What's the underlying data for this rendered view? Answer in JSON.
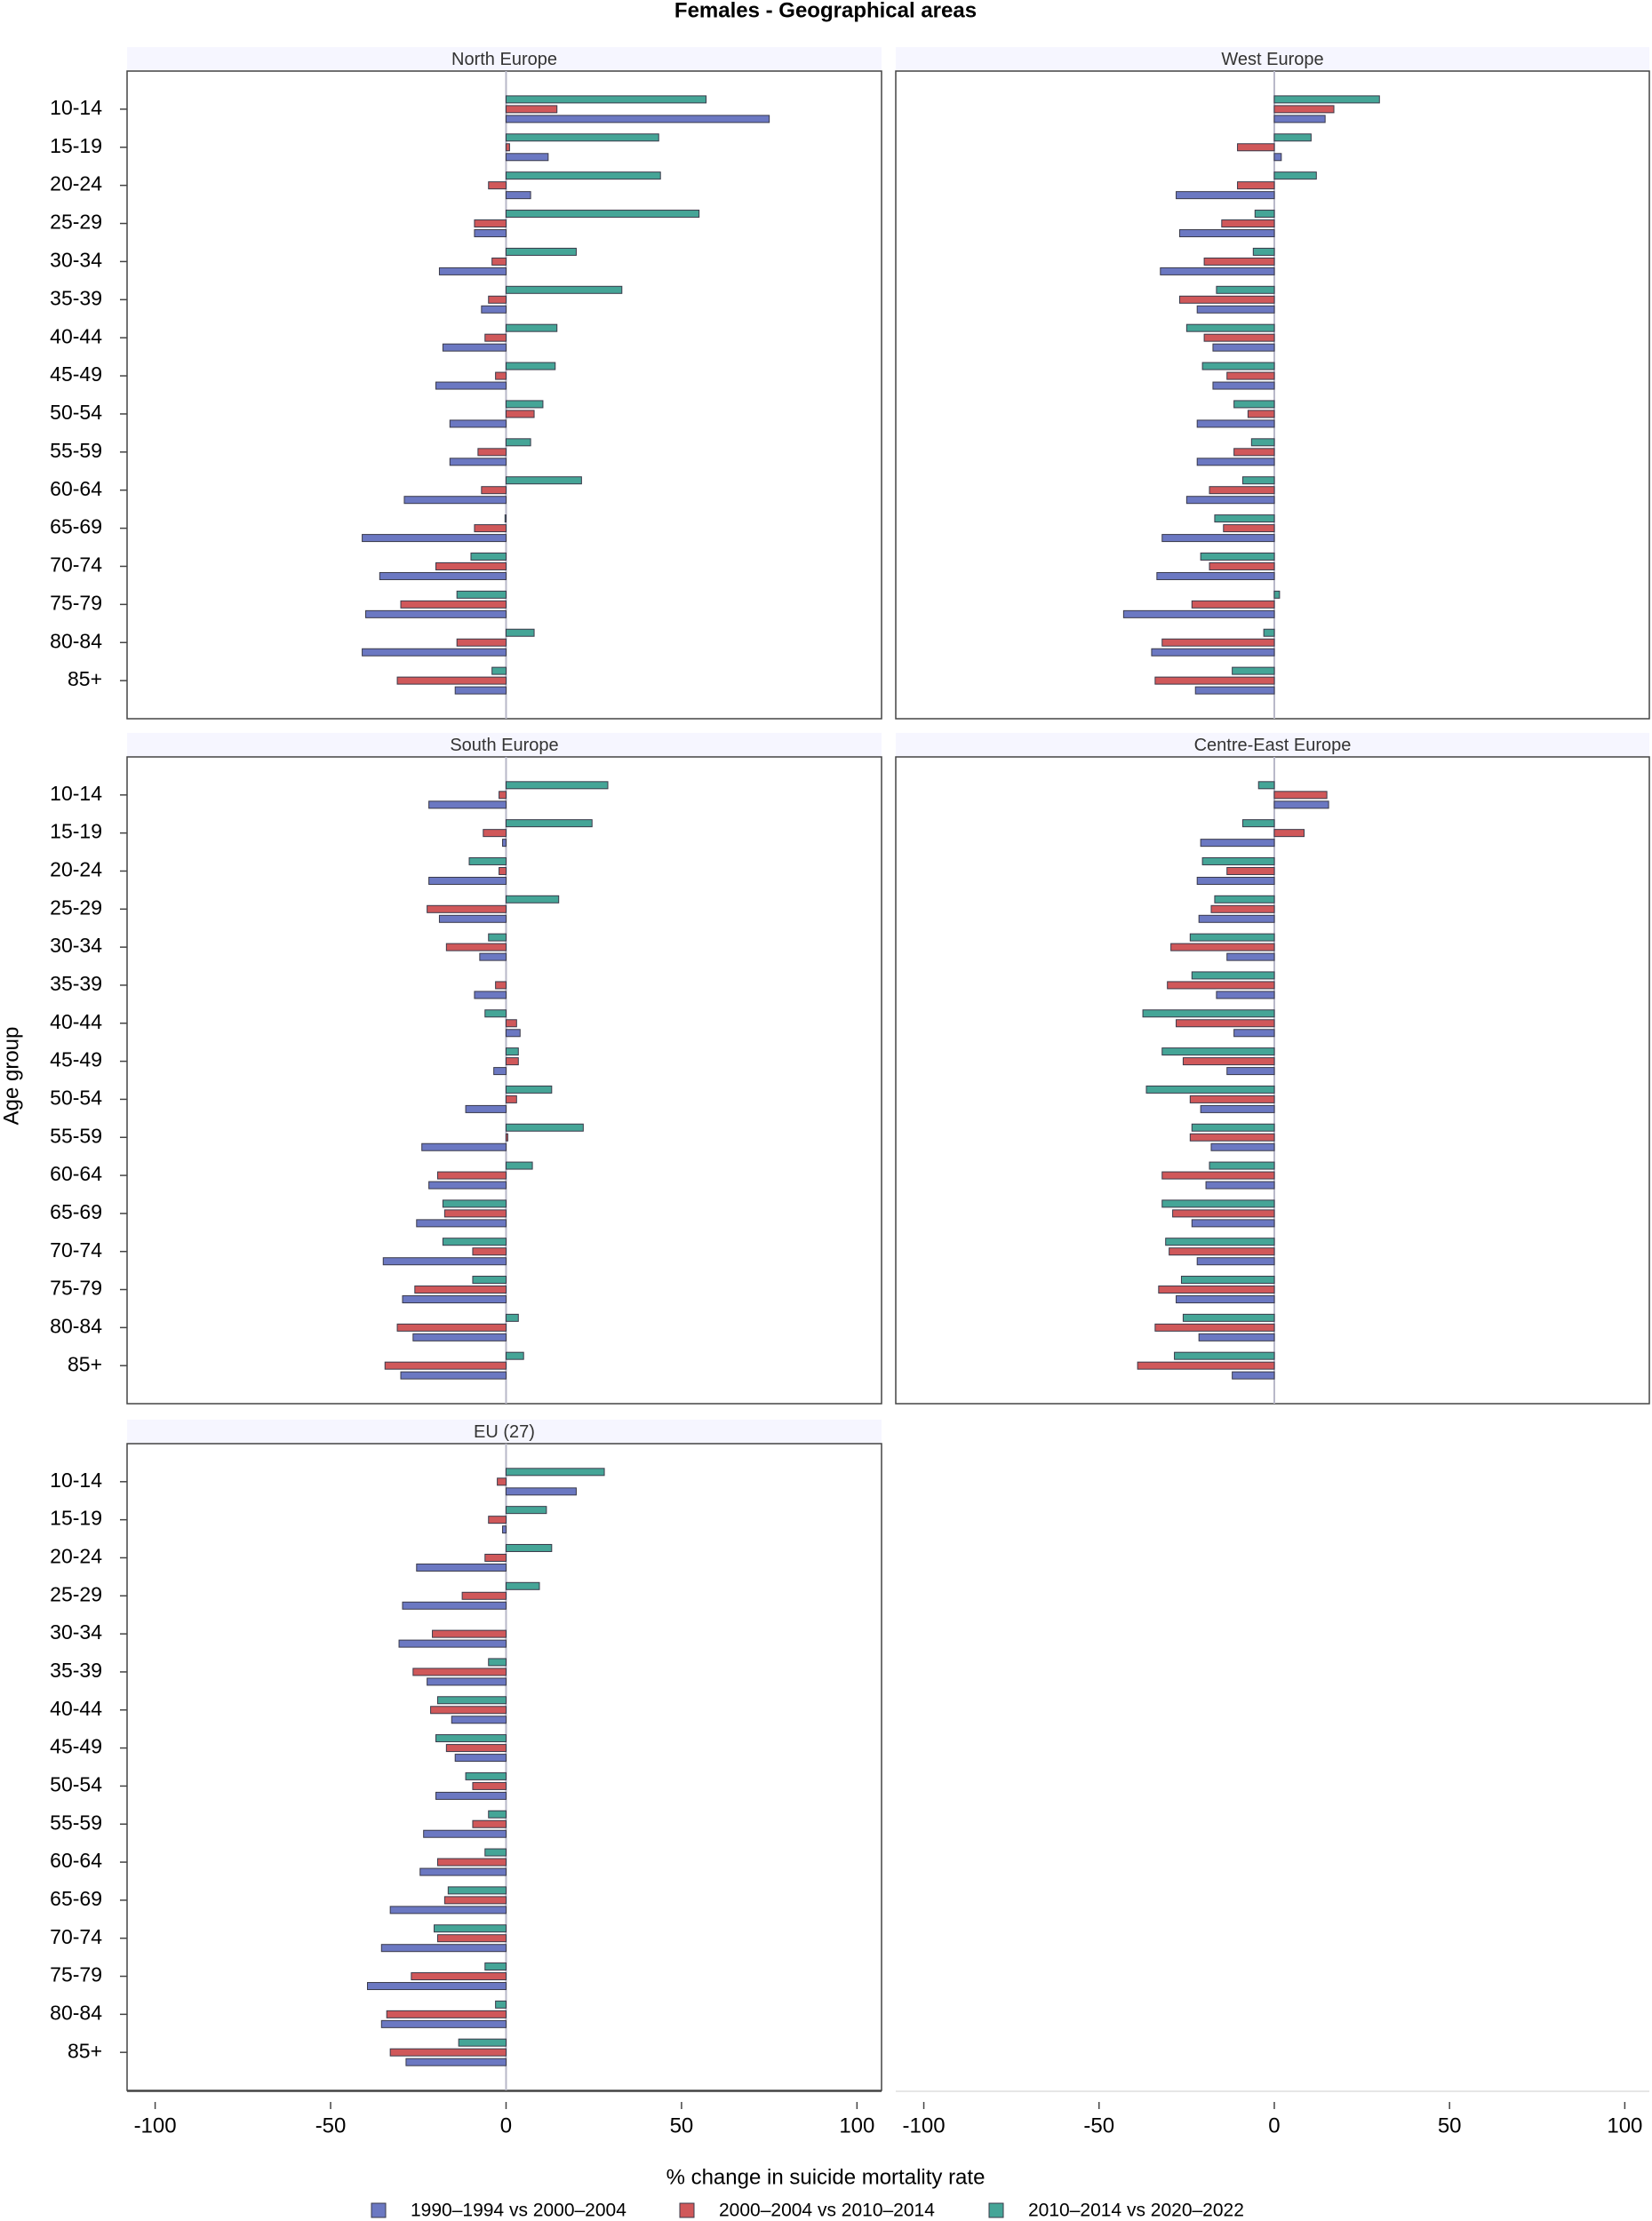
{
  "title": "Females - Geographical areas",
  "x_label": "% change in suicide mortality rate",
  "y_label": "Age group",
  "chart_data": [
    {
      "type": "bar",
      "orientation": "horizontal",
      "title": "North Europe",
      "categories": [
        "10-14",
        "15-19",
        "20-24",
        "25-29",
        "30-34",
        "35-39",
        "40-44",
        "45-49",
        "50-54",
        "55-59",
        "60-64",
        "65-69",
        "70-74",
        "75-79",
        "80-84",
        "85+"
      ],
      "xlim": [
        -108,
        107
      ],
      "xticks": [
        -100,
        -50,
        0,
        50,
        100
      ],
      "series": [
        {
          "name": "1990–1994 vs 2000–2004",
          "color": "#6b78c2",
          "values": [
            75,
            12,
            7,
            -9,
            -19,
            -7,
            -18,
            -20,
            -16,
            -16,
            -29,
            -41,
            -36,
            -40,
            -41,
            -14.5
          ]
        },
        {
          "name": "2000–2004 vs 2010–2014",
          "color": "#d0585a",
          "values": [
            14.5,
            1,
            -5,
            -9,
            -4,
            -5,
            -6,
            -3,
            8,
            -8,
            -7,
            -9,
            -20,
            -30,
            -14,
            -31
          ]
        },
        {
          "name": "2010–2014 vs 2020–2022",
          "color": "#45a597",
          "values": [
            57,
            43.5,
            44,
            55,
            20,
            33,
            14.5,
            14,
            10.5,
            7,
            21.5,
            -0.3,
            -10,
            -14,
            8,
            -4
          ]
        }
      ]
    },
    {
      "type": "bar",
      "orientation": "horizontal",
      "title": "West Europe",
      "categories": [
        "10-14",
        "15-19",
        "20-24",
        "25-29",
        "30-34",
        "35-39",
        "40-44",
        "45-49",
        "50-54",
        "55-59",
        "60-64",
        "65-69",
        "70-74",
        "75-79",
        "80-84",
        "85+"
      ],
      "xlim": [
        -108,
        107
      ],
      "xticks": [
        -100,
        -50,
        0,
        50,
        100
      ],
      "series": [
        {
          "name": "1990–1994 vs 2000–2004",
          "color": "#6b78c2",
          "values": [
            14.5,
            2,
            -28,
            -27,
            -32.5,
            -22,
            -17.5,
            -17.5,
            -22,
            -22,
            -25,
            -32,
            -33.5,
            -43,
            -35,
            -22.5
          ]
        },
        {
          "name": "2000–2004 vs 2010–2014",
          "color": "#d0585a",
          "values": [
            17,
            -10.5,
            -10.5,
            -15,
            -20,
            -27,
            -20,
            -13.5,
            -7.5,
            -11.5,
            -18.5,
            -14.5,
            -18.5,
            -23.5,
            -32,
            -34
          ]
        },
        {
          "name": "2010–2014 vs 2020–2022",
          "color": "#45a597",
          "values": [
            30,
            10.5,
            12,
            -5.5,
            -6,
            -16.5,
            -25,
            -20.5,
            -11.5,
            -6.5,
            -9,
            -17,
            -21,
            1.5,
            -3,
            -12
          ]
        }
      ]
    },
    {
      "type": "bar",
      "orientation": "horizontal",
      "title": "South Europe",
      "categories": [
        "10-14",
        "15-19",
        "20-24",
        "25-29",
        "30-34",
        "35-39",
        "40-44",
        "45-49",
        "50-54",
        "55-59",
        "60-64",
        "65-69",
        "70-74",
        "75-79",
        "80-84",
        "85+"
      ],
      "xlim": [
        -108,
        107
      ],
      "xticks": [
        -100,
        -50,
        0,
        50,
        100
      ],
      "series": [
        {
          "name": "1990–1994 vs 2000–2004",
          "color": "#6b78c2",
          "values": [
            -22,
            -1,
            -22,
            -19,
            -7.5,
            -9,
            4,
            -3.5,
            -11.5,
            -24,
            -22,
            -25.5,
            -35,
            -29.5,
            -26.5,
            -30
          ]
        },
        {
          "name": "2000–2004 vs 2010–2014",
          "color": "#d0585a",
          "values": [
            -2,
            -6.5,
            -2,
            -22.5,
            -17,
            -3,
            3,
            3.5,
            3,
            0.5,
            -19.5,
            -17.5,
            -9.5,
            -26,
            -31,
            -34.5
          ]
        },
        {
          "name": "2010–2014 vs 2020–2022",
          "color": "#45a597",
          "values": [
            29,
            24.5,
            -10.5,
            15,
            -5,
            0,
            -6,
            3.5,
            13,
            22,
            7.5,
            -18,
            -18,
            -9.5,
            3.5,
            5
          ]
        }
      ]
    },
    {
      "type": "bar",
      "orientation": "horizontal",
      "title": "Centre-East Europe",
      "categories": [
        "10-14",
        "15-19",
        "20-24",
        "25-29",
        "30-34",
        "35-39",
        "40-44",
        "45-49",
        "50-54",
        "55-59",
        "60-64",
        "65-69",
        "70-74",
        "75-79",
        "80-84",
        "85+"
      ],
      "xlim": [
        -108,
        107
      ],
      "xticks": [
        -100,
        -50,
        0,
        50,
        100
      ],
      "series": [
        {
          "name": "1990–1994 vs 2000–2004",
          "color": "#6b78c2",
          "values": [
            15.5,
            -21,
            -22,
            -21.5,
            -13.5,
            -16.5,
            -11.5,
            -13.5,
            -21,
            -18,
            -19.5,
            -23.5,
            -22,
            -28,
            -21.5,
            -12
          ]
        },
        {
          "name": "2000–2004 vs 2010–2014",
          "color": "#d0585a",
          "values": [
            15,
            8.5,
            -13.5,
            -18,
            -29.5,
            -30.5,
            -28,
            -26,
            -24,
            -24,
            -32,
            -29,
            -30,
            -33,
            -34,
            -39
          ]
        },
        {
          "name": "2010–2014 vs 2020–2022",
          "color": "#45a597",
          "values": [
            -4.5,
            -9,
            -20.5,
            -17,
            -24,
            -23.5,
            -37.5,
            -32,
            -36.5,
            -23.5,
            -18.5,
            -32,
            -31,
            -26.5,
            -26,
            -28.5
          ]
        }
      ]
    },
    {
      "type": "bar",
      "orientation": "horizontal",
      "title": "EU (27)",
      "categories": [
        "10-14",
        "15-19",
        "20-24",
        "25-29",
        "30-34",
        "35-39",
        "40-44",
        "45-49",
        "50-54",
        "55-59",
        "60-64",
        "65-69",
        "70-74",
        "75-79",
        "80-84",
        "85+"
      ],
      "xlim": [
        -108,
        107
      ],
      "xticks": [
        -100,
        -50,
        0,
        50,
        100
      ],
      "series": [
        {
          "name": "1990–1994 vs 2000–2004",
          "color": "#6b78c2",
          "values": [
            20,
            -1,
            -25.5,
            -29.5,
            -30.5,
            -22.5,
            -15.5,
            -14.5,
            -20,
            -23.5,
            -24.5,
            -33,
            -35.5,
            -39.5,
            -35.5,
            -28.5
          ]
        },
        {
          "name": "2000–2004 vs 2010–2014",
          "color": "#d0585a",
          "values": [
            -2.5,
            -5,
            -6,
            -12.5,
            -21,
            -26.5,
            -21.5,
            -17,
            -9.5,
            -9.5,
            -19.5,
            -17.5,
            -19.5,
            -27,
            -34,
            -33
          ]
        },
        {
          "name": "2010–2014 vs 2020–2022",
          "color": "#45a597",
          "values": [
            28,
            11.5,
            13,
            9.5,
            0,
            -5,
            -19.5,
            -20,
            -11.5,
            -5,
            -6,
            -16.5,
            -20.5,
            -6,
            -3,
            -13.5
          ]
        }
      ]
    }
  ]
}
